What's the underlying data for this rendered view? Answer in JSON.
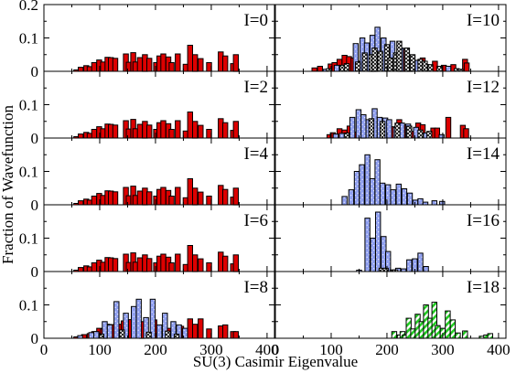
{
  "chart_data": {
    "type": "bar",
    "xlabel": "SU(3) Casimir Eigenvalue",
    "ylabel": "Fraction of Wavefunction",
    "xlim": [
      0,
      410
    ],
    "ylim": [
      0,
      0.2
    ],
    "x_ticks": [
      "0",
      "100",
      "200",
      "300",
      "400"
    ],
    "y_ticks": [
      "0",
      "0.1",
      "0.2"
    ],
    "colors": {
      "red": "#dd0000",
      "blue": "#8f9ff0",
      "green": "#22cc22",
      "white": "#ffffff"
    },
    "panels": [
      {
        "label": "I=0",
        "series": [
          {
            "style": "red",
            "x": [
              58,
              66,
              76,
              82,
              90,
              99,
              106,
              114,
              120,
              128,
              147,
              152,
              160,
              164,
              172,
              181,
              189,
              201,
              207,
              214,
              223,
              229,
              240,
              254,
              262,
              271,
              281,
              296,
              317,
              325,
              339,
              344
            ],
            "values": [
              0.004,
              0.012,
              0.017,
              0.014,
              0.026,
              0.034,
              0.028,
              0.042,
              0.041,
              0.039,
              0.052,
              0.027,
              0.056,
              0.028,
              0.041,
              0.05,
              0.039,
              0.026,
              0.046,
              0.052,
              0.043,
              0.026,
              0.052,
              0.021,
              0.078,
              0.05,
              0.038,
              0.026,
              0.058,
              0.046,
              0.023,
              0.05
            ]
          }
        ]
      },
      {
        "label": "I=2",
        "series": [
          {
            "style": "red",
            "x": [
              58,
              66,
              76,
              82,
              90,
              99,
              106,
              114,
              120,
              128,
              147,
              152,
              160,
              164,
              172,
              181,
              189,
              201,
              207,
              214,
              223,
              229,
              240,
              254,
              262,
              271,
              281,
              296,
              317,
              325,
              339,
              344
            ],
            "values": [
              0.004,
              0.012,
              0.017,
              0.014,
              0.026,
              0.034,
              0.028,
              0.042,
              0.041,
              0.039,
              0.052,
              0.027,
              0.056,
              0.028,
              0.041,
              0.05,
              0.039,
              0.026,
              0.046,
              0.052,
              0.043,
              0.026,
              0.052,
              0.021,
              0.078,
              0.05,
              0.038,
              0.026,
              0.058,
              0.046,
              0.023,
              0.05
            ]
          }
        ]
      },
      {
        "label": "I=4",
        "series": [
          {
            "style": "red",
            "x": [
              58,
              66,
              76,
              82,
              90,
              99,
              106,
              114,
              120,
              128,
              147,
              152,
              160,
              164,
              172,
              181,
              189,
              201,
              207,
              214,
              223,
              229,
              240,
              254,
              262,
              271,
              281,
              296,
              317,
              325,
              339,
              344
            ],
            "values": [
              0.004,
              0.012,
              0.017,
              0.014,
              0.026,
              0.034,
              0.028,
              0.042,
              0.041,
              0.039,
              0.052,
              0.027,
              0.056,
              0.028,
              0.041,
              0.05,
              0.039,
              0.026,
              0.046,
              0.052,
              0.043,
              0.026,
              0.052,
              0.021,
              0.078,
              0.05,
              0.038,
              0.026,
              0.058,
              0.046,
              0.023,
              0.05
            ]
          }
        ]
      },
      {
        "label": "I=6",
        "series": [
          {
            "style": "red",
            "x": [
              58,
              66,
              76,
              82,
              90,
              99,
              106,
              114,
              120,
              128,
              147,
              152,
              160,
              164,
              172,
              181,
              189,
              201,
              207,
              214,
              223,
              229,
              240,
              254,
              262,
              271,
              281,
              296,
              317,
              325,
              339,
              344
            ],
            "values": [
              0.004,
              0.012,
              0.017,
              0.014,
              0.026,
              0.034,
              0.028,
              0.042,
              0.041,
              0.039,
              0.052,
              0.027,
              0.056,
              0.028,
              0.041,
              0.05,
              0.039,
              0.026,
              0.046,
              0.052,
              0.043,
              0.026,
              0.052,
              0.021,
              0.078,
              0.05,
              0.038,
              0.026,
              0.058,
              0.046,
              0.023,
              0.05
            ]
          }
        ]
      },
      {
        "label": "I=8",
        "series": [
          {
            "style": "red",
            "x": [
              58,
              66,
              72,
              82,
              90,
              99,
              106,
              114,
              125,
              138,
              143,
              152,
              156,
              166,
              176,
              190,
              198,
              210,
              225,
              233,
              246,
              254,
              262,
              271,
              281,
              296,
              317,
              325,
              339,
              344
            ],
            "values": [
              0.004,
              0.006,
              0.011,
              0.014,
              0.02,
              0.03,
              0.028,
              0.042,
              0.041,
              0.042,
              0.052,
              0.027,
              0.056,
              0.028,
              0.05,
              0.012,
              0.055,
              0.03,
              0.03,
              0.018,
              0.036,
              0.025,
              0.058,
              0.042,
              0.058,
              0.028,
              0.037,
              0.04,
              0.02,
              0.02
            ]
          },
          {
            "style": "blue",
            "x": [
              65,
              85,
              94,
              109,
              118,
              130,
              147,
              161,
              170,
              183,
              195,
              207,
              217,
              232,
              242,
              253
            ],
            "values": [
              0.008,
              0.017,
              0.02,
              0.05,
              0.04,
              0.11,
              0.075,
              0.095,
              0.117,
              0.062,
              0.117,
              0.04,
              0.075,
              0.05,
              0.04,
              0.03
            ]
          },
          {
            "style": "white",
            "x": [
              103,
              140,
              188,
              222,
              238
            ],
            "values": [
              0.012,
              0.025,
              0.018,
              0.022,
              0.012
            ]
          }
        ]
      },
      {
        "label": "I=10",
        "series": [
          {
            "style": "red",
            "x": [
              70,
              80,
              99,
              106,
              115,
              124,
              132,
              140,
              152,
              168,
              195,
              202,
              230,
              264,
              286,
              302,
              319,
              340,
              343
            ],
            "values": [
              0.01,
              0.015,
              0.022,
              0.026,
              0.036,
              0.048,
              0.044,
              0.04,
              0.03,
              0.022,
              0.03,
              0.04,
              0.066,
              0.04,
              0.03,
              0.018,
              0.02,
              0.036,
              0.025
            ]
          },
          {
            "style": "blue",
            "x": [
              90,
              110,
              144,
              156,
              164,
              174,
              183,
              194,
              210,
              225,
              240,
              255,
              272,
              310
            ],
            "values": [
              0.006,
              0.018,
              0.083,
              0.1,
              0.085,
              0.108,
              0.132,
              0.1,
              0.09,
              0.07,
              0.045,
              0.033,
              0.02,
              0.015
            ]
          },
          {
            "style": "white",
            "x": [
              96,
              120,
              128,
              148,
              160,
              172,
              178,
              188,
              200,
              206,
              216,
              222,
              236,
              246,
              260,
              268,
              278,
              294,
              325,
              332
            ],
            "values": [
              0.008,
              0.018,
              0.023,
              0.028,
              0.055,
              0.05,
              0.07,
              0.06,
              0.08,
              0.04,
              0.055,
              0.09,
              0.07,
              0.05,
              0.036,
              0.03,
              0.02,
              0.015,
              0.008,
              0.006
            ]
          }
        ]
      },
      {
        "label": "I=12",
        "series": [
          {
            "style": "red",
            "x": [
              97,
              103,
              115,
              124,
              133,
              142,
              210,
              222,
              233,
              246,
              256,
              264,
              283,
              290,
              310,
              336,
              342
            ],
            "values": [
              0.01,
              0.016,
              0.028,
              0.024,
              0.036,
              0.018,
              0.034,
              0.055,
              0.04,
              0.02,
              0.045,
              0.04,
              0.03,
              0.03,
              0.062,
              0.038,
              0.028
            ]
          },
          {
            "style": "blue",
            "x": [
              108,
              119,
              138,
              149,
              158,
              167,
              178,
              187,
              197,
              204,
              216,
              227,
              238,
              252,
              270,
              298
            ],
            "values": [
              0.012,
              0.014,
              0.062,
              0.085,
              0.07,
              0.055,
              0.088,
              0.062,
              0.06,
              0.055,
              0.032,
              0.045,
              0.042,
              0.032,
              0.015,
              0.01
            ]
          },
          {
            "style": "white",
            "x": [
              128,
              172,
              192,
              219,
              240,
              260,
              276
            ],
            "values": [
              0.015,
              0.058,
              0.05,
              0.045,
              0.036,
              0.024,
              0.02
            ]
          }
        ]
      },
      {
        "label": "I=14",
        "series": [
          {
            "style": "blue",
            "x": [
              124,
              136,
              146,
              155,
              165,
              174,
              183,
              192,
              202,
              211,
              221,
              231,
              241,
              251,
              260,
              269,
              285,
              299
            ],
            "values": [
              0.025,
              0.045,
              0.1,
              0.12,
              0.15,
              0.078,
              0.135,
              0.065,
              0.06,
              0.045,
              0.062,
              0.048,
              0.035,
              0.014,
              0.018,
              0.008,
              0.012,
              0.01
            ]
          }
        ]
      },
      {
        "label": "I=16",
        "series": [
          {
            "style": "blue",
            "x": [
              150,
              165,
              175,
              184,
              194,
              202,
              220,
              230,
              240,
              250,
              260,
              270
            ],
            "values": [
              0.004,
              0.16,
              0.1,
              0.178,
              0.105,
              0.06,
              0.01,
              0.008,
              0.035,
              0.038,
              0.055,
              0.015
            ]
          },
          {
            "style": "white",
            "x": [
              190,
              198,
              210,
              215
            ],
            "values": [
              0.01,
              0.01,
              0.005,
              0.005
            ]
          }
        ]
      },
      {
        "label": "I=18",
        "series": [
          {
            "style": "green",
            "x": [
              213,
              223,
              228,
              232,
              239,
              247,
              255,
              262,
              270,
              278,
              285,
              291,
              300,
              309,
              318,
              327,
              340,
              370,
              378,
              385
            ],
            "values": [
              0.02,
              0.01,
              0.02,
              0.01,
              0.06,
              0.028,
              0.072,
              0.05,
              0.1,
              0.06,
              0.108,
              0.038,
              0.03,
              0.082,
              0.055,
              0.016,
              0.022,
              0.006,
              0.01,
              0.014
            ]
          }
        ]
      }
    ]
  }
}
